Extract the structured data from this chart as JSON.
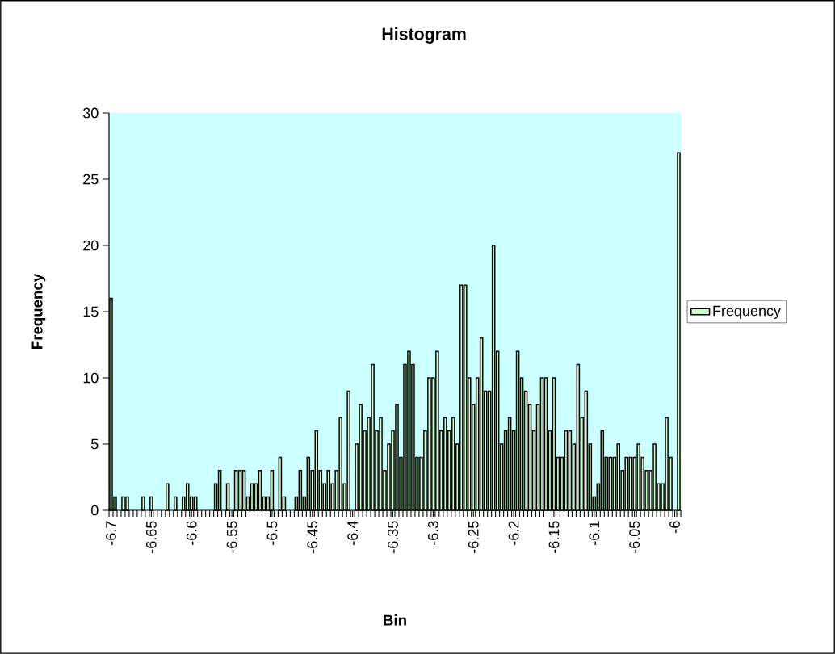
{
  "chart_data": {
    "type": "bar",
    "title": "Histogram",
    "xlabel": "Bin",
    "ylabel": "Frequency",
    "categories": [
      "-6.7",
      null,
      null,
      null,
      null,
      null,
      null,
      null,
      null,
      null,
      "-6.65",
      null,
      null,
      null,
      null,
      null,
      null,
      null,
      null,
      null,
      "-6.6",
      null,
      null,
      null,
      null,
      null,
      null,
      null,
      null,
      null,
      "-6.55",
      null,
      null,
      null,
      null,
      null,
      null,
      null,
      null,
      null,
      "-6.5",
      null,
      null,
      null,
      null,
      null,
      null,
      null,
      null,
      null,
      "-6.45",
      null,
      null,
      null,
      null,
      null,
      null,
      null,
      null,
      null,
      "-6.4",
      null,
      null,
      null,
      null,
      null,
      null,
      null,
      null,
      null,
      "-6.35",
      null,
      null,
      null,
      null,
      null,
      null,
      null,
      null,
      null,
      "-6.3",
      null,
      null,
      null,
      null,
      null,
      null,
      null,
      null,
      null,
      "-6.25",
      null,
      null,
      null,
      null,
      null,
      null,
      null,
      null,
      null,
      "-6.2",
      null,
      null,
      null,
      null,
      null,
      null,
      null,
      null,
      null,
      "-6.15",
      null,
      null,
      null,
      null,
      null,
      null,
      null,
      null,
      null,
      "-6.1",
      null,
      null,
      null,
      null,
      null,
      null,
      null,
      null,
      null,
      "-6.05",
      null,
      null,
      null,
      null,
      null,
      null,
      null,
      null,
      null,
      "-6",
      null
    ],
    "series": [
      {
        "name": "Frequency",
        "color": "#ccffcc",
        "values": [
          16,
          1,
          0,
          1,
          1,
          0,
          0,
          0,
          1,
          0,
          1,
          0,
          0,
          0,
          2,
          0,
          1,
          0,
          1,
          2,
          1,
          1,
          0,
          0,
          0,
          0,
          2,
          3,
          0,
          2,
          0,
          3,
          3,
          3,
          1,
          2,
          2,
          3,
          1,
          1,
          3,
          0,
          4,
          1,
          0,
          0,
          1,
          3,
          1,
          4,
          3,
          6,
          3,
          2,
          3,
          2,
          3,
          7,
          2,
          9,
          0,
          5,
          8,
          6,
          7,
          11,
          6,
          7,
          3,
          5,
          6,
          8,
          4,
          11,
          12,
          11,
          4,
          4,
          6,
          10,
          10,
          12,
          6,
          7,
          6,
          7,
          5,
          17,
          17,
          10,
          8,
          10,
          13,
          9,
          9,
          20,
          12,
          5,
          6,
          7,
          6,
          12,
          10,
          9,
          8,
          6,
          8,
          10,
          10,
          6,
          10,
          4,
          4,
          6,
          6,
          5,
          11,
          7,
          9,
          5,
          1,
          2,
          6,
          4,
          4,
          4,
          5,
          3,
          4,
          4,
          4,
          5,
          4,
          3,
          3,
          5,
          2,
          2,
          7,
          4,
          0,
          27
        ]
      }
    ],
    "ylim": [
      0,
      30
    ],
    "yticks": [
      0,
      5,
      10,
      15,
      20,
      25,
      30
    ],
    "legend": "right"
  }
}
